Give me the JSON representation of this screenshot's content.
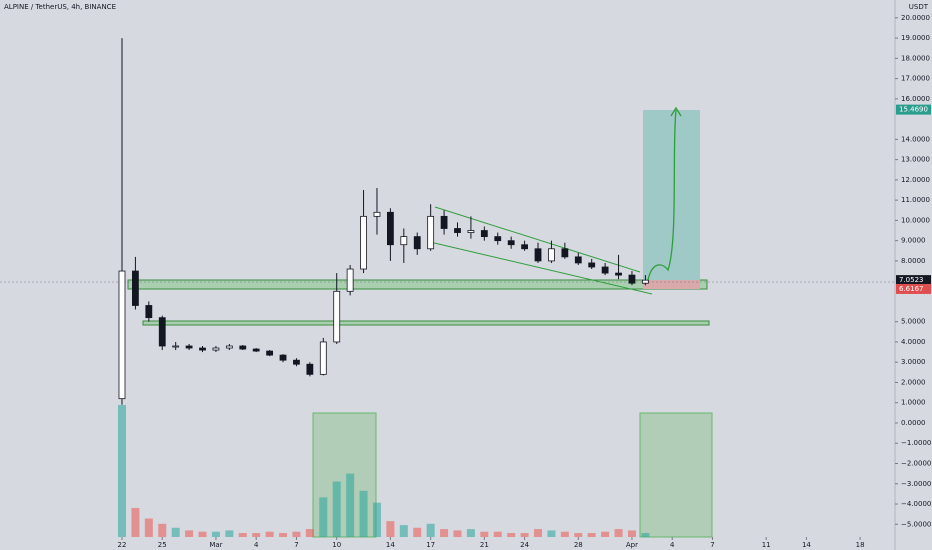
{
  "chart_data": {
    "type": "candlestick",
    "title": "ALPINE / TetherUS, 4h, BINANCE",
    "currency": "USDT",
    "x": [
      0,
      1,
      2,
      3,
      4,
      5,
      6,
      7,
      8,
      9,
      10,
      11,
      12,
      13,
      14,
      15,
      16,
      17,
      18,
      19,
      20,
      21,
      22,
      23,
      24,
      25,
      26,
      27,
      28,
      29,
      30,
      31,
      32,
      33,
      34,
      35,
      36,
      37,
      38,
      39
    ],
    "open": [
      1.2,
      7.5,
      5.8,
      5.2,
      3.8,
      3.8,
      3.7,
      3.6,
      3.7,
      3.8,
      3.65,
      3.55,
      3.35,
      3.1,
      2.9,
      2.4,
      4.0,
      6.5,
      7.6,
      10.2,
      10.4,
      8.8,
      9.2,
      8.6,
      10.2,
      9.6,
      9.4,
      9.5,
      9.2,
      9.0,
      8.8,
      8.6,
      8.0,
      8.6,
      8.2,
      7.9,
      7.7,
      7.4,
      7.3,
      6.9
    ],
    "high": [
      19.0,
      8.2,
      6.0,
      5.3,
      4.0,
      3.9,
      3.8,
      3.8,
      3.9,
      3.85,
      3.7,
      3.6,
      3.4,
      3.2,
      3.0,
      4.2,
      7.4,
      7.8,
      11.5,
      11.6,
      10.6,
      9.6,
      9.4,
      10.8,
      10.5,
      9.9,
      10.2,
      9.7,
      9.4,
      9.2,
      9.0,
      8.9,
      9.0,
      8.9,
      8.4,
      8.1,
      7.9,
      8.3,
      7.5,
      7.3
    ],
    "low": [
      0.9,
      5.6,
      5.0,
      3.6,
      3.6,
      3.6,
      3.5,
      3.5,
      3.6,
      3.6,
      3.5,
      3.3,
      3.0,
      2.8,
      2.3,
      2.35,
      3.9,
      6.3,
      7.4,
      9.3,
      8.0,
      7.9,
      8.3,
      8.5,
      9.3,
      9.2,
      9.1,
      9.0,
      8.8,
      8.6,
      8.5,
      7.9,
      7.9,
      8.1,
      7.8,
      7.6,
      7.3,
      7.1,
      6.8,
      6.8
    ],
    "close": [
      7.5,
      5.8,
      5.2,
      3.8,
      3.8,
      3.7,
      3.6,
      3.7,
      3.8,
      3.65,
      3.55,
      3.35,
      3.1,
      2.9,
      2.4,
      4.0,
      6.5,
      7.6,
      10.2,
      10.4,
      8.8,
      9.2,
      8.6,
      10.2,
      9.6,
      9.4,
      9.5,
      9.2,
      9.0,
      8.8,
      8.6,
      8.0,
      8.6,
      8.2,
      7.9,
      7.7,
      7.4,
      7.3,
      6.9,
      7.05
    ],
    "volume": [
      100,
      22,
      14,
      10,
      7,
      5,
      4,
      4,
      5,
      3,
      3,
      4,
      3,
      4,
      6,
      30,
      42,
      48,
      35,
      26,
      12,
      9,
      7,
      10,
      6,
      5,
      6,
      4,
      4,
      3,
      3,
      6,
      5,
      4,
      3,
      3,
      4,
      6,
      5,
      3
    ],
    "xlim": [
      -9.09,
      57.6
    ],
    "ylim": [
      -6.27,
      20.88
    ],
    "xticks": [
      {
        "value": 0,
        "label": "22"
      },
      {
        "value": 3,
        "label": "25"
      },
      {
        "value": 7,
        "label": "Mar"
      },
      {
        "value": 10,
        "label": "4"
      },
      {
        "value": 13,
        "label": "7"
      },
      {
        "value": 16,
        "label": "10"
      },
      {
        "value": 20,
        "label": "14"
      },
      {
        "value": 23,
        "label": "17"
      },
      {
        "value": 27,
        "label": "21"
      },
      {
        "value": 30,
        "label": "24"
      },
      {
        "value": 34,
        "label": "28"
      },
      {
        "value": 38,
        "label": "Apr"
      },
      {
        "value": 41,
        "label": "4"
      },
      {
        "value": 44,
        "label": "7"
      },
      {
        "value": 48,
        "label": "11"
      },
      {
        "value": 51,
        "label": "14"
      },
      {
        "value": 55,
        "label": "18"
      }
    ],
    "yticks": [
      {
        "value": 20,
        "label": "20.0000"
      },
      {
        "value": 19,
        "label": "19.0000"
      },
      {
        "value": 18,
        "label": "18.0000"
      },
      {
        "value": 17,
        "label": "17.0000"
      },
      {
        "value": 16,
        "label": "16.0000"
      },
      {
        "value": 14,
        "label": "14.0000"
      },
      {
        "value": 13,
        "label": "13.0000"
      },
      {
        "value": 12,
        "label": "12.0000"
      },
      {
        "value": 11,
        "label": "11.0000"
      },
      {
        "value": 10,
        "label": "10.0000"
      },
      {
        "value": 9,
        "label": "9.0000"
      },
      {
        "value": 8,
        "label": "8.0000"
      },
      {
        "value": 5,
        "label": "5.0000"
      },
      {
        "value": 4,
        "label": "4.0000"
      },
      {
        "value": 3,
        "label": "3.0000"
      },
      {
        "value": 2,
        "label": "2.0000"
      },
      {
        "value": 1,
        "label": "1.0000"
      },
      {
        "value": 0,
        "label": "0.0000"
      },
      {
        "value": -1,
        "label": "−1.0000"
      },
      {
        "value": -2,
        "label": "−2.0000"
      },
      {
        "value": -3,
        "label": "−3.0000"
      },
      {
        "value": -4,
        "label": "−4.0000"
      },
      {
        "value": -5,
        "label": "−5.0000"
      }
    ],
    "price_labels": [
      {
        "value": 15.469,
        "label": "15.4690",
        "color": "#2a9d8f"
      },
      {
        "value": 7.0523,
        "label": "7.0523",
        "color": "#131722"
      },
      {
        "value": 6.6167,
        "label": "6.6167",
        "color": "#e04e4e"
      }
    ],
    "up_color": "#26a69a",
    "down_color": "#ef5350"
  }
}
